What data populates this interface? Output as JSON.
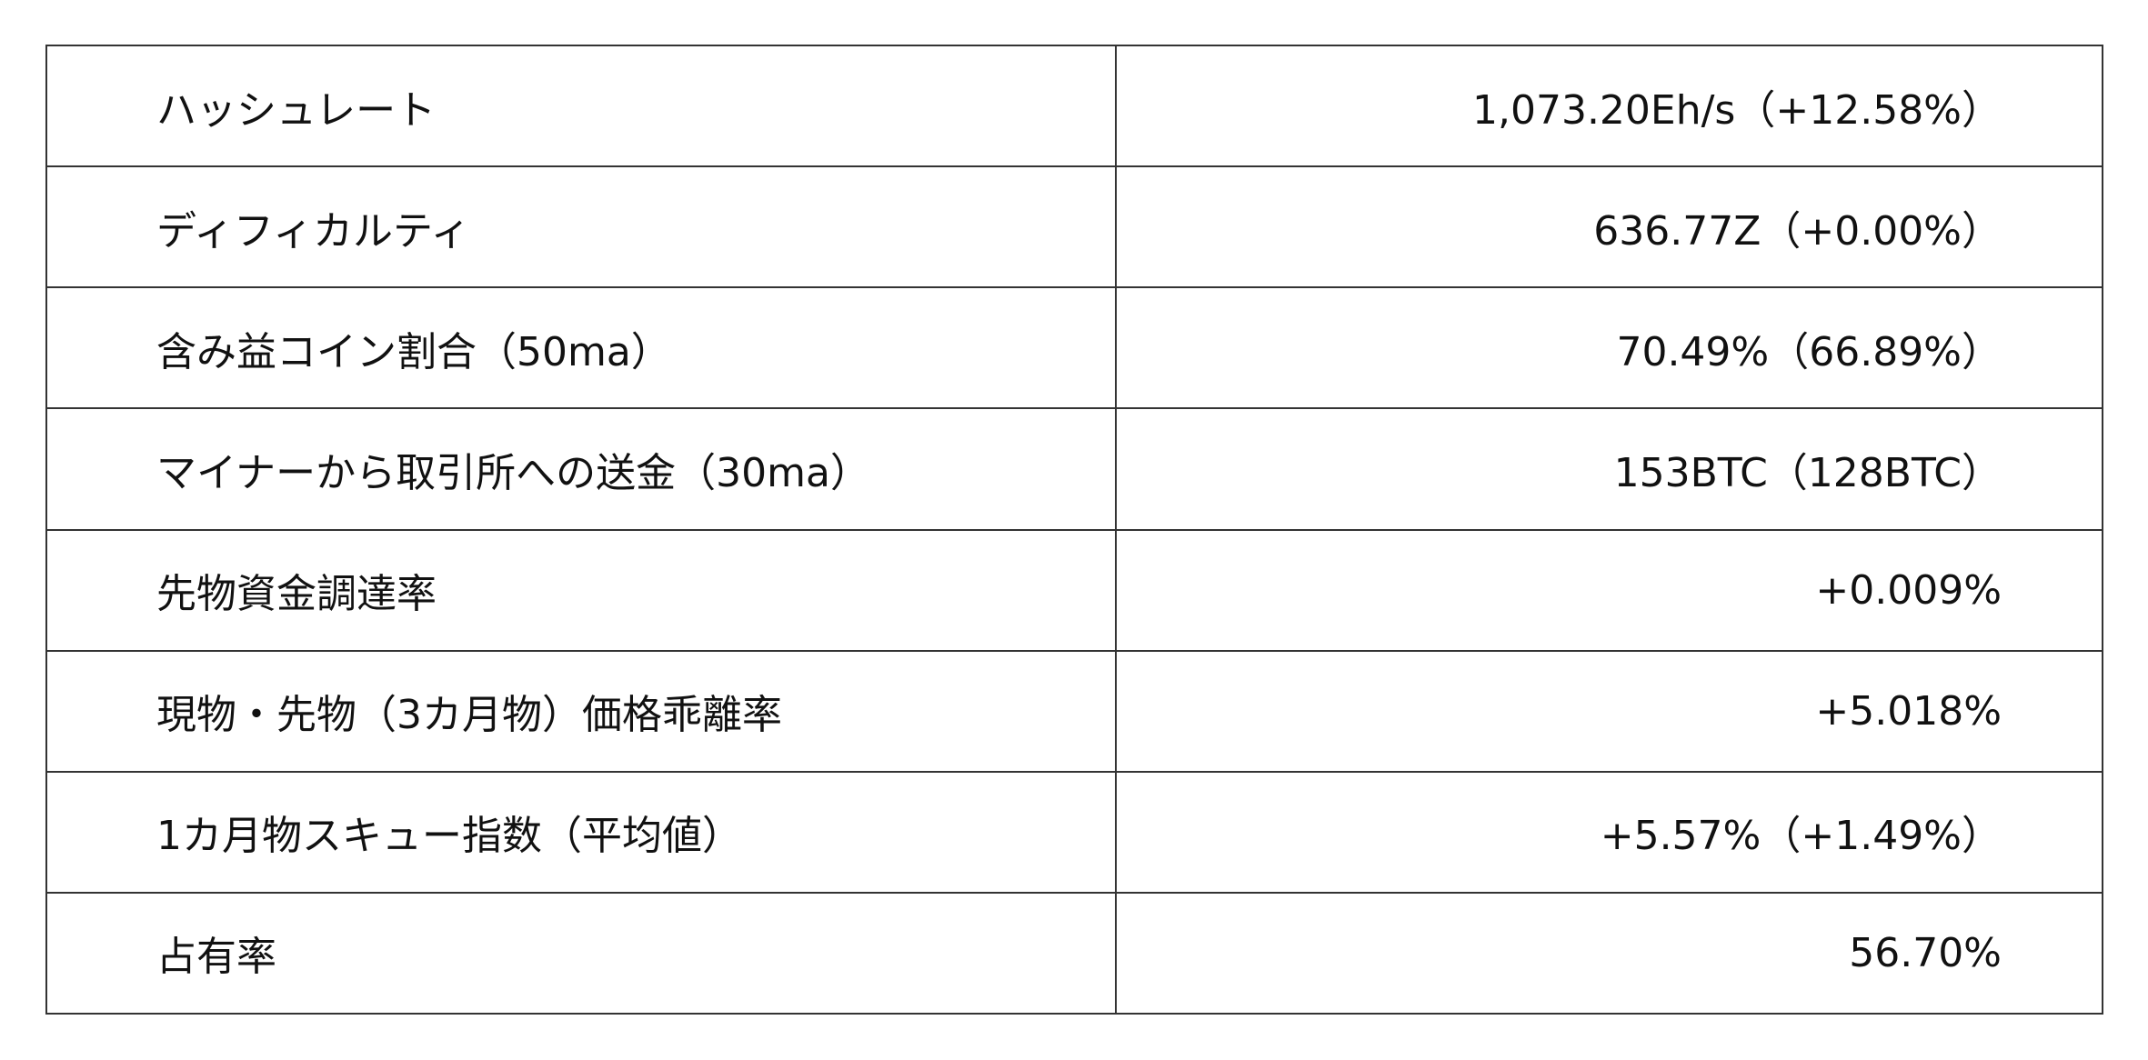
{
  "rows": [
    {
      "label": "ハッシュレート",
      "value": "1,073.20Eh/s（+12.58%）"
    },
    {
      "label": "ディフィカルティ",
      "value": "636.77Z（+0.00%）"
    },
    {
      "label": "含み益コイン割合（50ma）",
      "value": "70.49%（66.89%）"
    },
    {
      "label": "マイナーから取引所への送金（30ma）",
      "value": "153BTC（128BTC）"
    },
    {
      "label": "先物資金調達率",
      "value": "+0.009%"
    },
    {
      "label": "現物・先物（3カ月物）価格乖離率",
      "value": "+5.018%"
    },
    {
      "label": "1カ月物スキュー指数（平均値）",
      "value": "+5.57%（+1.49%）"
    },
    {
      "label": "占有率",
      "value": "56.70%"
    }
  ]
}
